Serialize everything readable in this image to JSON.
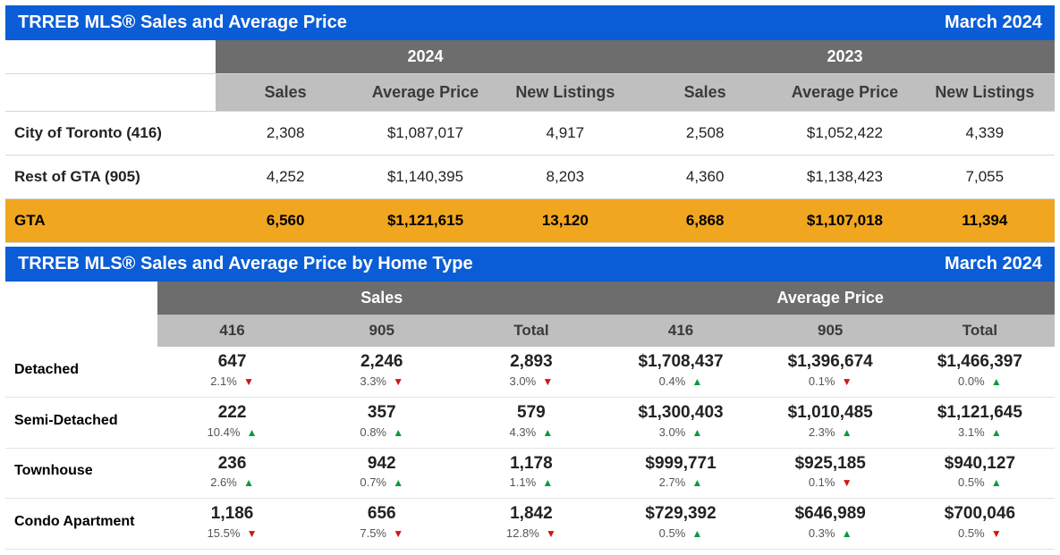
{
  "colors": {
    "banner_bg": "#0a5dd6",
    "banner_text": "#ffffff",
    "header_dark_bg": "#6d6d6d",
    "header_light_bg": "#bfbfbf",
    "total_row_bg": "#f1a61f",
    "up_arrow": "#0a9a3d",
    "down_arrow": "#d01515",
    "border": "#d7d7d7"
  },
  "banner1": {
    "title": "TRREB MLS® Sales and Average Price",
    "period": "March 2024"
  },
  "table1": {
    "year_a": "2024",
    "year_b": "2023",
    "subheaders": [
      "Sales",
      "Average Price",
      "New Listings"
    ],
    "rows": [
      {
        "label": "City of Toronto (416)",
        "a": [
          "2,308",
          "$1,087,017",
          "4,917"
        ],
        "b": [
          "2,508",
          "$1,052,422",
          "4,339"
        ]
      },
      {
        "label": "Rest of GTA (905)",
        "a": [
          "4,252",
          "$1,140,395",
          "8,203"
        ],
        "b": [
          "4,360",
          "$1,138,423",
          "7,055"
        ]
      }
    ],
    "total": {
      "label": "GTA",
      "a": [
        "6,560",
        "$1,121,615",
        "13,120"
      ],
      "b": [
        "6,868",
        "$1,107,018",
        "11,394"
      ]
    }
  },
  "banner2": {
    "title": "TRREB MLS® Sales and Average Price by Home Type",
    "period": "March 2024"
  },
  "table2": {
    "groups": [
      "Sales",
      "Average Price"
    ],
    "subheaders": [
      "416",
      "905",
      "Total"
    ],
    "rows": [
      {
        "label": "Detached",
        "sales": [
          {
            "v": "647",
            "p": "2.1%",
            "d": "down"
          },
          {
            "v": "2,246",
            "p": "3.3%",
            "d": "down"
          },
          {
            "v": "2,893",
            "p": "3.0%",
            "d": "down"
          }
        ],
        "price": [
          {
            "v": "$1,708,437",
            "p": "0.4%",
            "d": "up"
          },
          {
            "v": "$1,396,674",
            "p": "0.1%",
            "d": "down"
          },
          {
            "v": "$1,466,397",
            "p": "0.0%",
            "d": "up"
          }
        ]
      },
      {
        "label": "Semi-Detached",
        "sales": [
          {
            "v": "222",
            "p": "10.4%",
            "d": "up"
          },
          {
            "v": "357",
            "p": "0.8%",
            "d": "up"
          },
          {
            "v": "579",
            "p": "4.3%",
            "d": "up"
          }
        ],
        "price": [
          {
            "v": "$1,300,403",
            "p": "3.0%",
            "d": "up"
          },
          {
            "v": "$1,010,485",
            "p": "2.3%",
            "d": "up"
          },
          {
            "v": "$1,121,645",
            "p": "3.1%",
            "d": "up"
          }
        ]
      },
      {
        "label": "Townhouse",
        "sales": [
          {
            "v": "236",
            "p": "2.6%",
            "d": "up"
          },
          {
            "v": "942",
            "p": "0.7%",
            "d": "up"
          },
          {
            "v": "1,178",
            "p": "1.1%",
            "d": "up"
          }
        ],
        "price": [
          {
            "v": "$999,771",
            "p": "2.7%",
            "d": "up"
          },
          {
            "v": "$925,185",
            "p": "0.1%",
            "d": "down"
          },
          {
            "v": "$940,127",
            "p": "0.5%",
            "d": "up"
          }
        ]
      },
      {
        "label": "Condo Apartment",
        "sales": [
          {
            "v": "1,186",
            "p": "15.5%",
            "d": "down"
          },
          {
            "v": "656",
            "p": "7.5%",
            "d": "down"
          },
          {
            "v": "1,842",
            "p": "12.8%",
            "d": "down"
          }
        ],
        "price": [
          {
            "v": "$729,392",
            "p": "0.5%",
            "d": "up"
          },
          {
            "v": "$646,989",
            "p": "0.3%",
            "d": "up"
          },
          {
            "v": "$700,046",
            "p": "0.5%",
            "d": "down"
          }
        ]
      }
    ]
  }
}
